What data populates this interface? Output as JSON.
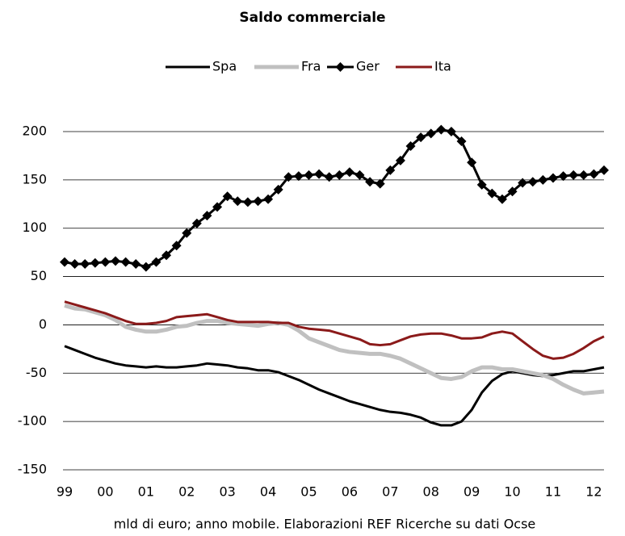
{
  "chart_data": {
    "type": "line",
    "title": "Saldo commerciale",
    "footnote": "mld di euro; anno mobile.  Elaborazioni REF Ricerche su dati Ocse",
    "categories": [
      "99",
      null,
      null,
      null,
      "00",
      null,
      null,
      null,
      "01",
      null,
      null,
      null,
      "02",
      null,
      null,
      null,
      "03",
      null,
      null,
      null,
      "04",
      null,
      null,
      null,
      "05",
      null,
      null,
      null,
      "06",
      null,
      null,
      null,
      "07",
      null,
      null,
      null,
      "08",
      null,
      null,
      null,
      "09",
      null,
      null,
      null,
      "10",
      null,
      null,
      null,
      "11",
      null,
      null,
      null,
      "12",
      null
    ],
    "series": [
      {
        "name": "Spa",
        "color": "#000000",
        "values": [
          -22,
          -26,
          -30,
          -34,
          -37,
          -40,
          -42,
          -43,
          -44,
          -43,
          -44,
          -44,
          -43,
          -42,
          -40,
          -41,
          -42,
          -44,
          -45,
          -47,
          -47,
          -49,
          -53,
          -57,
          -62,
          -67,
          -71,
          -75,
          -79,
          -82,
          -85,
          -88,
          -90,
          -91,
          -93,
          -96,
          -101,
          -104,
          -104,
          -100,
          -88,
          -70,
          -58,
          -51,
          -48,
          -50,
          -52,
          -53,
          -52,
          -50,
          -48,
          -48,
          -46,
          -44
        ]
      },
      {
        "name": "Fra",
        "color": "#c0c0c0",
        "values": [
          20,
          17,
          16,
          13,
          10,
          5,
          -2,
          -5,
          -7,
          -7,
          -5,
          -2,
          -1,
          2,
          4,
          4,
          2,
          1,
          0,
          -1,
          1,
          2,
          0,
          -6,
          -14,
          -18,
          -22,
          -26,
          -28,
          -29,
          -30,
          -30,
          -32,
          -35,
          -40,
          -45,
          -50,
          -55,
          -56,
          -54,
          -48,
          -44,
          -44,
          -46,
          -46,
          -48,
          -50,
          -52,
          -56,
          -62,
          -67,
          -71,
          -70,
          -69
        ]
      },
      {
        "name": "Ger",
        "color": "#000000",
        "marker": "diamond",
        "values": [
          65,
          63,
          63,
          64,
          65,
          66,
          65,
          63,
          60,
          65,
          72,
          82,
          95,
          105,
          113,
          122,
          133,
          128,
          127,
          128,
          130,
          140,
          153,
          154,
          155,
          156,
          153,
          155,
          158,
          155,
          148,
          146,
          160,
          170,
          185,
          194,
          198,
          202,
          200,
          190,
          168,
          145,
          136,
          130,
          138,
          147,
          148,
          150,
          152,
          154,
          155,
          155,
          156,
          160
        ]
      },
      {
        "name": "Ita",
        "color": "#8b1a1a",
        "values": [
          24,
          21,
          18,
          15,
          12,
          8,
          4,
          1,
          1,
          2,
          4,
          8,
          9,
          10,
          11,
          8,
          5,
          3,
          3,
          3,
          3,
          2,
          2,
          -2,
          -4,
          -5,
          -6,
          -9,
          -12,
          -15,
          -20,
          -21,
          -20,
          -16,
          -12,
          -10,
          -9,
          -9,
          -11,
          -14,
          -14,
          -13,
          -9,
          -7,
          -9,
          -17,
          -25,
          -32,
          -35,
          -34,
          -30,
          -24,
          -17,
          -12
        ]
      }
    ],
    "ylim": [
      -150,
      200
    ],
    "yticks": [
      -150,
      -100,
      -50,
      0,
      50,
      100,
      150,
      200
    ],
    "grid": true,
    "legend": "top"
  }
}
